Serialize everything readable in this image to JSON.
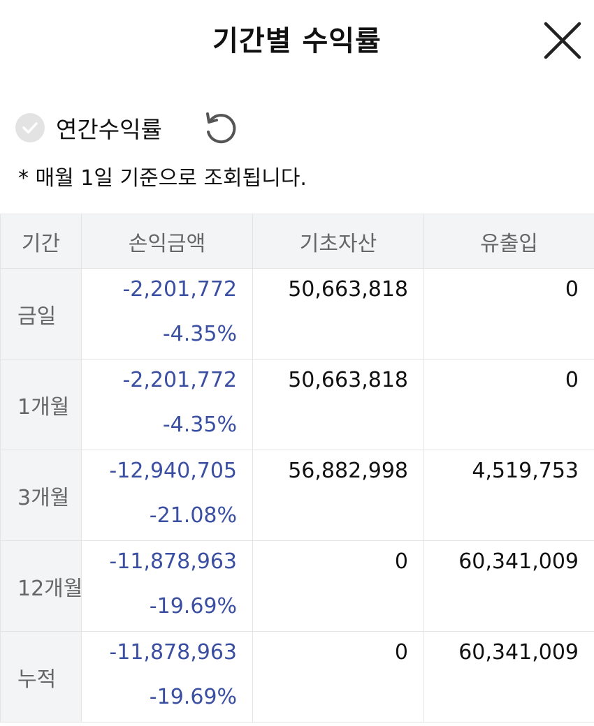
{
  "header": {
    "title": "기간별 수익률",
    "close_icon": "close-icon"
  },
  "options": {
    "annual_label": "연간수익률",
    "annual_checked": false,
    "check_icon": "check-circle-icon",
    "refresh_icon": "refresh-icon"
  },
  "note": "* 매월 1일 기준으로 조회됩니다.",
  "colors": {
    "profit_loss_text": "#3a4fa2",
    "header_bg": "#f3f4f6"
  },
  "table": {
    "headers": [
      "기간",
      "손익금액",
      "기초자산",
      "유출입"
    ],
    "rows": [
      {
        "period": "금일",
        "pl_amount": "-2,201,772",
        "pl_rate": "-4.35%",
        "base_asset": "50,663,818",
        "flow": "0"
      },
      {
        "period": "1개월",
        "pl_amount": "-2,201,772",
        "pl_rate": "-4.35%",
        "base_asset": "50,663,818",
        "flow": "0"
      },
      {
        "period": "3개월",
        "pl_amount": "-12,940,705",
        "pl_rate": "-21.08%",
        "base_asset": "56,882,998",
        "flow": "4,519,753"
      },
      {
        "period": "12개월",
        "pl_amount": "-11,878,963",
        "pl_rate": "-19.69%",
        "base_asset": "0",
        "flow": "60,341,009"
      },
      {
        "period": "누적",
        "pl_amount": "-11,878,963",
        "pl_rate": "-19.69%",
        "base_asset": "0",
        "flow": "60,341,009"
      }
    ]
  }
}
